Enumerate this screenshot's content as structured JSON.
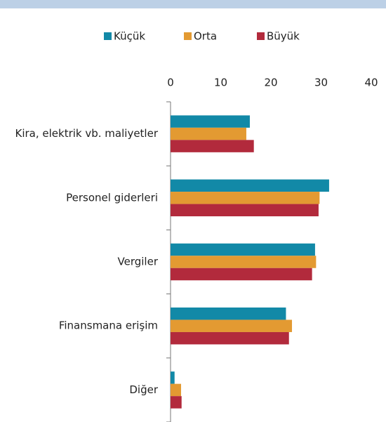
{
  "chart_data": {
    "type": "hbar",
    "categories": [
      "Kira, elektrik vb. maliyetler",
      "Personel giderleri",
      "Vergiler",
      "Finansmana erişim",
      "Diğer"
    ],
    "series": [
      {
        "name": "Küçük",
        "color": "#1289a7",
        "values": [
          15.8,
          31.6,
          28.8,
          23.0,
          0.8
        ]
      },
      {
        "name": "Orta",
        "color": "#e39a32",
        "values": [
          15.1,
          29.7,
          29.0,
          24.2,
          2.1
        ]
      },
      {
        "name": "Büyük",
        "color": "#b22a3c",
        "values": [
          16.6,
          29.5,
          28.2,
          23.6,
          2.2
        ]
      }
    ],
    "xlim": [
      0,
      40
    ],
    "xticks": [
      0,
      10,
      20,
      30,
      40
    ],
    "legend": "top"
  }
}
